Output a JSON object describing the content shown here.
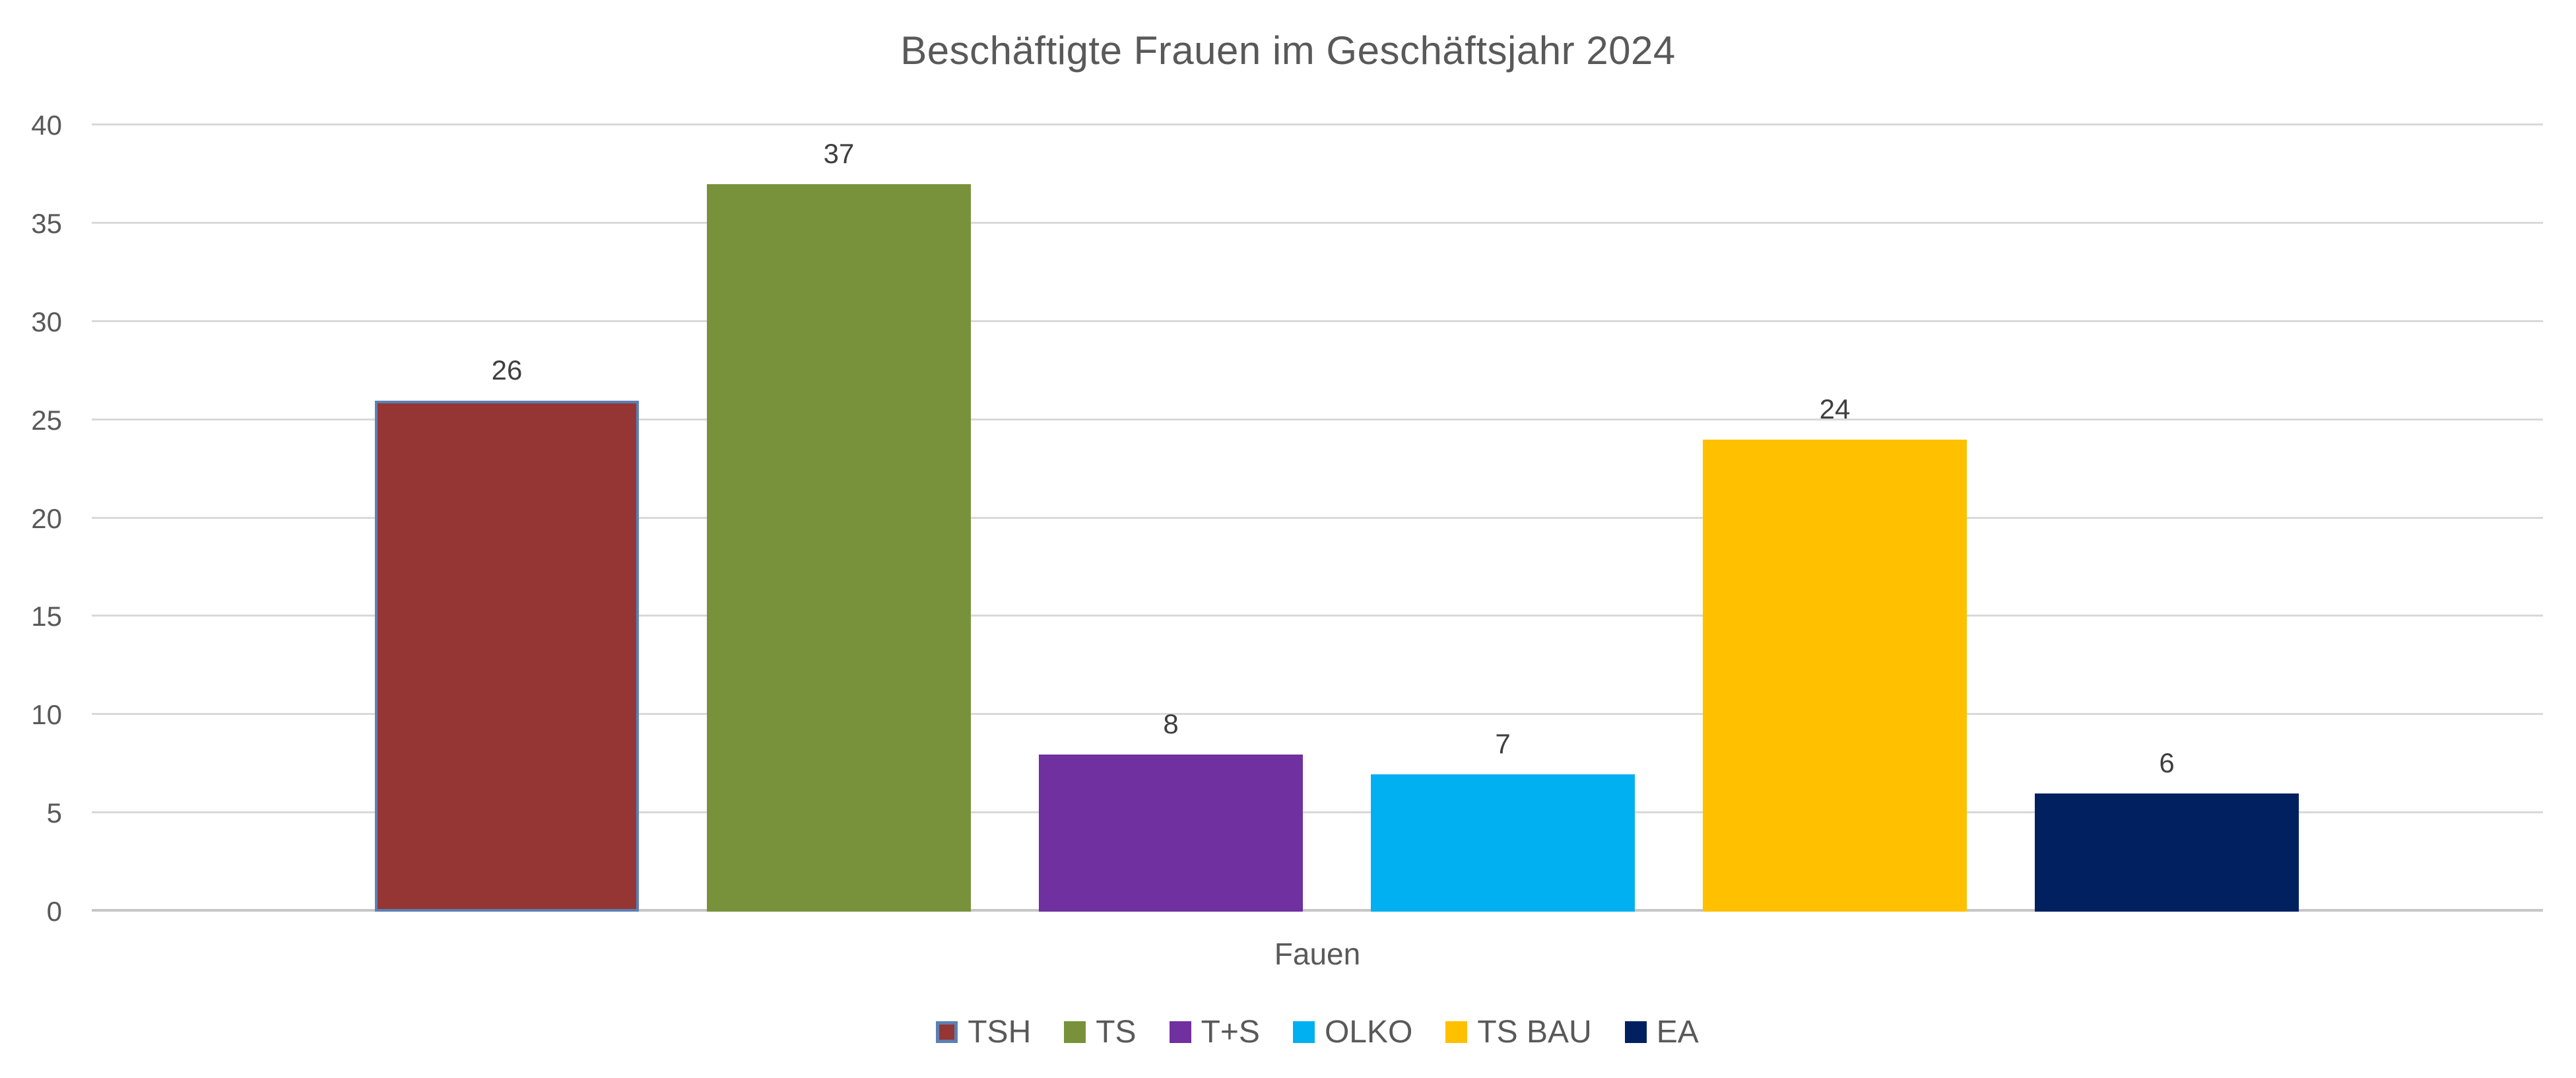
{
  "chart_data": {
    "type": "bar",
    "title": "Beschäftigte Frauen im Geschäftsjahr 2024",
    "xlabel": "Fauen",
    "ylabel": "",
    "ylim": [
      0,
      40
    ],
    "ytick_step": 5,
    "yticks": [
      0,
      5,
      10,
      15,
      20,
      25,
      30,
      35,
      40
    ],
    "grid": true,
    "legend_position": "bottom",
    "categories": [
      "Fauen"
    ],
    "series": [
      {
        "name": "TSH",
        "value": 26,
        "color": "#963634",
        "border": "#5B80B4"
      },
      {
        "name": "TS",
        "value": 37,
        "color": "#78923C",
        "border": null
      },
      {
        "name": "T+S",
        "value": 8,
        "color": "#7030A0",
        "border": null
      },
      {
        "name": "OLKO",
        "value": 7,
        "color": "#00B0F0",
        "border": null
      },
      {
        "name": "TS BAU",
        "value": 24,
        "color": "#FFC000",
        "border": null
      },
      {
        "name": "EA",
        "value": 6,
        "color": "#002060",
        "border": null
      }
    ]
  },
  "colors": {
    "background": "#FFFFFF",
    "title_text": "#595959",
    "tick_text": "#595959",
    "data_label_text": "#3F3F3F",
    "gridline": "#D9D9D9",
    "axis_line": "#C6C6C6",
    "legend_text": "#595959"
  }
}
